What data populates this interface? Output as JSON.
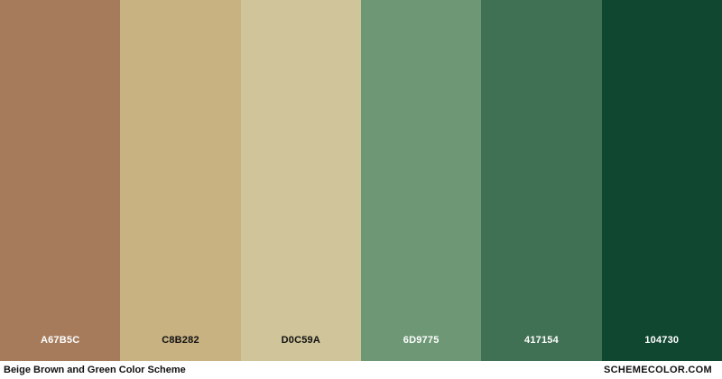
{
  "palette": {
    "swatches": [
      {
        "hex": "#A67B5C",
        "label": "A67B5C",
        "text_color": "#ffffff"
      },
      {
        "hex": "#C8B282",
        "label": "C8B282",
        "text_color": "#111111"
      },
      {
        "hex": "#D0C59A",
        "label": "D0C59A",
        "text_color": "#111111"
      },
      {
        "hex": "#6D9775",
        "label": "6D9775",
        "text_color": "#ffffff"
      },
      {
        "hex": "#417154",
        "label": "417154",
        "text_color": "#ffffff"
      },
      {
        "hex": "#104730",
        "label": "104730",
        "text_color": "#ffffff"
      }
    ]
  },
  "footer": {
    "title": "Beige Brown and Green Color Scheme",
    "site": "SCHEMECOLOR.COM"
  }
}
